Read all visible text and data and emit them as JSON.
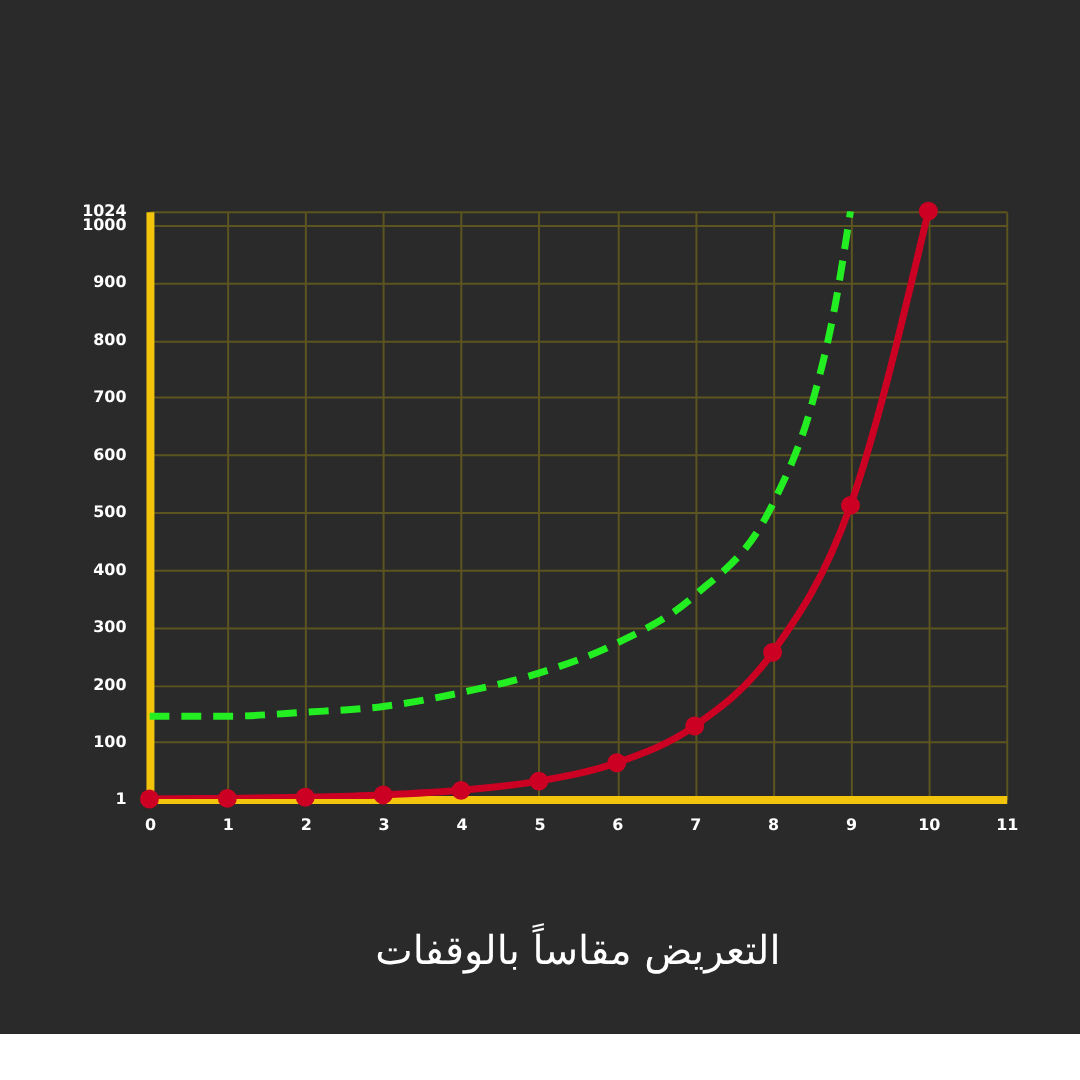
{
  "chart_data": {
    "type": "line",
    "title": "التعريض مقاساً بالوقفات",
    "x": [
      0,
      1,
      2,
      3,
      4,
      5,
      6,
      7,
      8,
      9,
      10
    ],
    "series": [
      {
        "color": "#22ee22",
        "line_style": "dashed",
        "marker": "none",
        "x": [
          0,
          1,
          2,
          3,
          4,
          5,
          6,
          7,
          8,
          8.5,
          8.8,
          9
        ],
        "values": [
          145,
          145,
          152,
          162,
          186,
          220,
          272,
          355,
          514,
          686,
          858,
          1024
        ]
      },
      {
        "color": "#cc0022",
        "line_style": "solid",
        "marker": "circle",
        "values": [
          1,
          2,
          4,
          8,
          16,
          32,
          64,
          128,
          256,
          512,
          1024
        ]
      }
    ],
    "xlim": [
      0,
      11
    ],
    "xticks": [
      0,
      1,
      2,
      3,
      4,
      5,
      6,
      7,
      8,
      9,
      10,
      11
    ],
    "ylim": [
      1,
      1024
    ],
    "yticks": [
      1,
      100,
      200,
      300,
      400,
      500,
      600,
      700,
      800,
      900,
      1000,
      1024
    ],
    "grid": true
  }
}
